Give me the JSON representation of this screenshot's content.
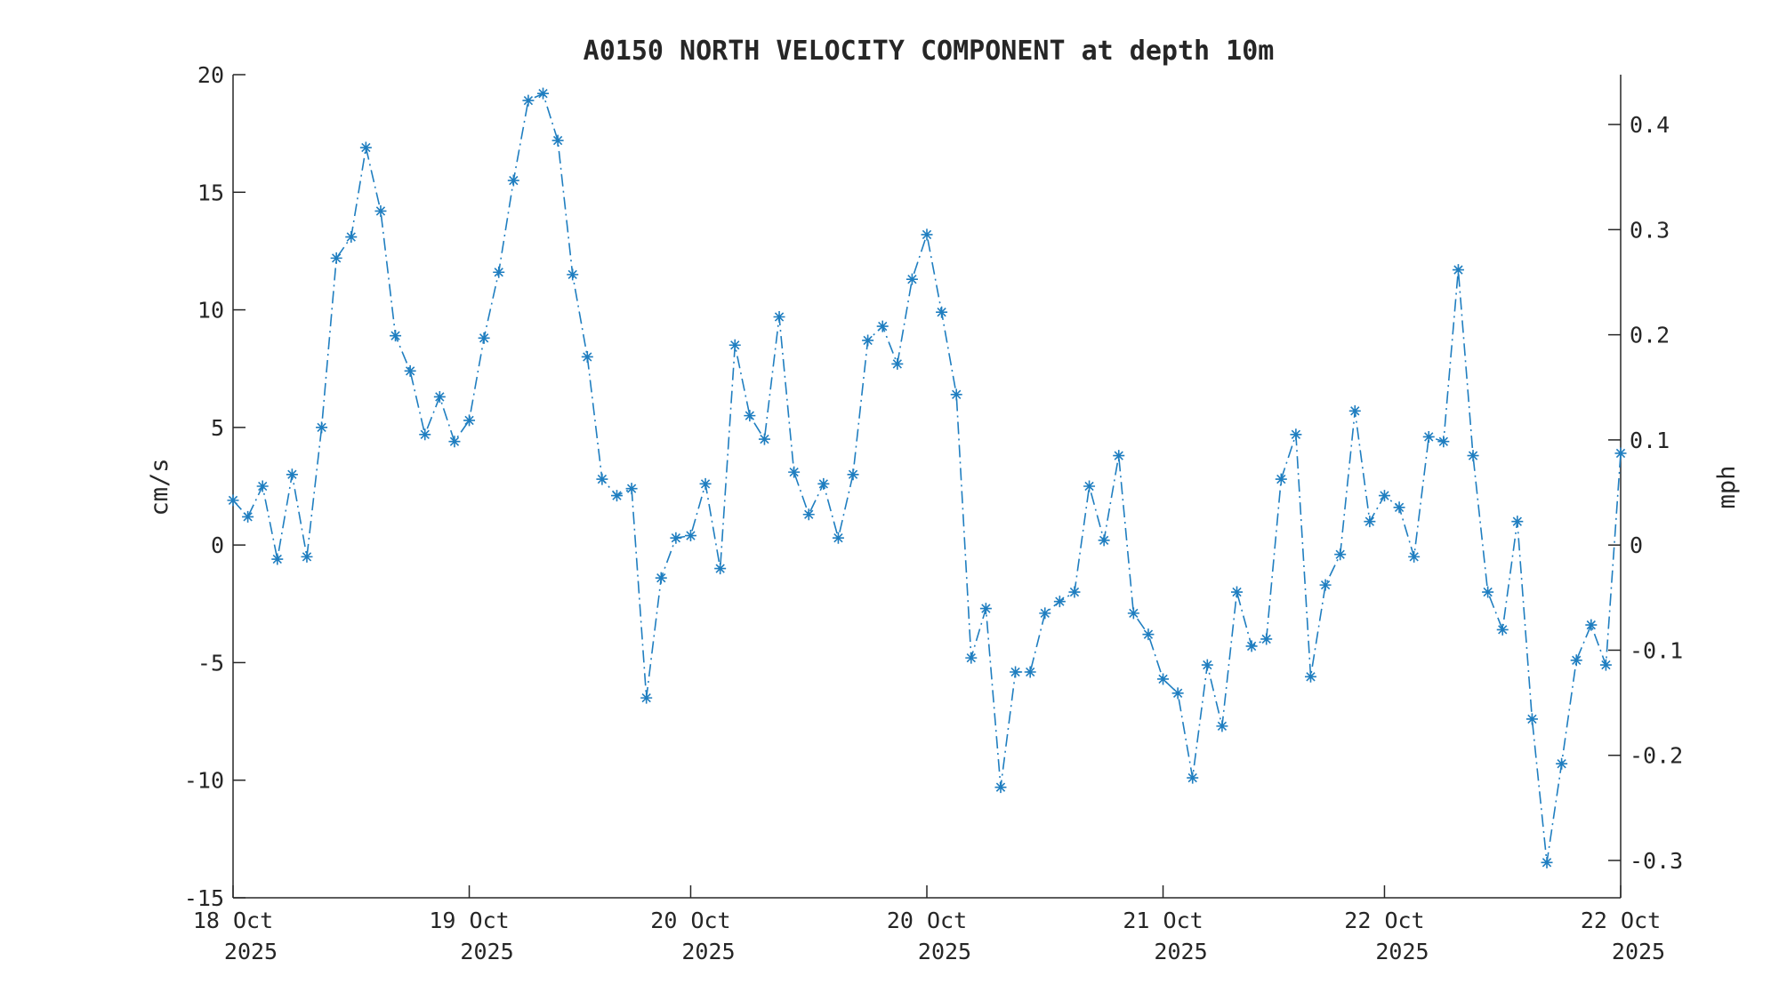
{
  "chart_data": {
    "type": "line",
    "title": "A0150 NORTH VELOCITY COMPONENT at depth 10m",
    "ylabel": "cm/s",
    "y2label": "mph",
    "xlim": [
      0,
      94
    ],
    "ylim": [
      -15,
      20
    ],
    "y2lim": [
      -0.3355,
      0.4474
    ],
    "grid": false,
    "x_ticks": [
      {
        "x": 0,
        "line1": "18 Oct",
        "line2": "2025"
      },
      {
        "x": 16,
        "line1": "19 Oct",
        "line2": "2025"
      },
      {
        "x": 31,
        "line1": "20 Oct",
        "line2": "2025"
      },
      {
        "x": 47,
        "line1": "20 Oct",
        "line2": "2025"
      },
      {
        "x": 63,
        "line1": "21 Oct",
        "line2": "2025"
      },
      {
        "x": 78,
        "line1": "22 Oct",
        "line2": "2025"
      },
      {
        "x": 94,
        "line1": "22 Oct",
        "line2": "2025"
      }
    ],
    "y_ticks": [
      {
        "v": 20,
        "label": "20"
      },
      {
        "v": 15,
        "label": "15"
      },
      {
        "v": 10,
        "label": "10"
      },
      {
        "v": 5,
        "label": "5"
      },
      {
        "v": 0,
        "label": "0"
      },
      {
        "v": -5,
        "label": "-5"
      },
      {
        "v": -10,
        "label": "-10"
      },
      {
        "v": -15,
        "label": "-15"
      }
    ],
    "y2_ticks": [
      {
        "v": 0.4,
        "label": "0.4"
      },
      {
        "v": 0.3,
        "label": "0.3"
      },
      {
        "v": 0.2,
        "label": "0.2"
      },
      {
        "v": 0.1,
        "label": "0.1"
      },
      {
        "v": 0,
        "label": "0"
      },
      {
        "v": -0.1,
        "label": "-0.1"
      },
      {
        "v": -0.2,
        "label": "-0.2"
      },
      {
        "v": -0.3,
        "label": "-0.3"
      }
    ],
    "series": [
      {
        "color": "#1f7ec0",
        "marker": "asterisk",
        "linestyle": "dash-dot",
        "values": [
          1.9,
          1.2,
          2.5,
          -0.6,
          3.0,
          -0.5,
          5.0,
          12.2,
          13.1,
          16.9,
          14.2,
          8.9,
          7.4,
          4.7,
          6.3,
          4.4,
          5.3,
          8.8,
          11.6,
          15.5,
          18.9,
          19.2,
          17.2,
          11.5,
          8.0,
          2.8,
          2.1,
          2.4,
          -6.5,
          -1.4,
          0.3,
          0.4,
          2.6,
          -1.0,
          8.5,
          5.5,
          4.5,
          9.7,
          3.1,
          1.3,
          2.6,
          0.3,
          3.0,
          8.7,
          9.3,
          7.7,
          11.3,
          13.2,
          9.9,
          6.4,
          -4.8,
          -2.7,
          -10.3,
          -5.4,
          -5.4,
          -2.9,
          -2.4,
          -2.0,
          2.5,
          0.2,
          3.8,
          -2.9,
          -3.8,
          -5.7,
          -6.3,
          -9.9,
          -5.1,
          -7.7,
          -2.0,
          -4.3,
          -4.0,
          2.8,
          4.7,
          -5.6,
          -1.7,
          -0.4,
          5.7,
          1.0,
          2.1,
          1.6,
          -0.5,
          4.6,
          4.4,
          11.7,
          3.8,
          -2.0,
          -3.6,
          1.0,
          -7.4,
          -13.5,
          -9.3,
          -4.9,
          -3.4,
          -5.1,
          3.9
        ]
      }
    ]
  }
}
